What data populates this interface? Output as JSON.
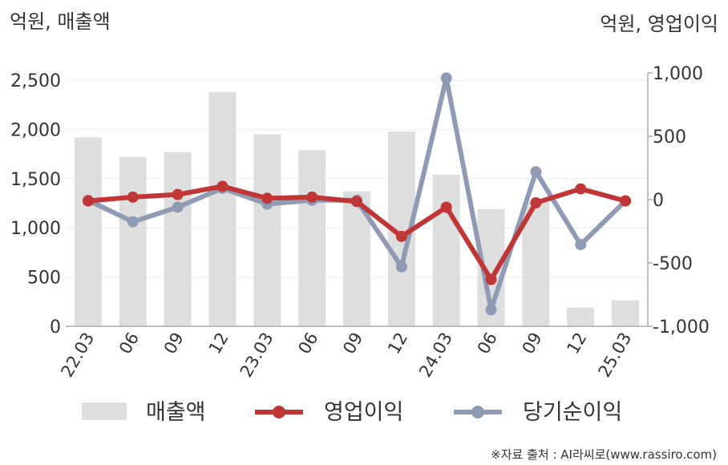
{
  "chart_data": {
    "type": "bar+line",
    "left_axis_title": "억원, 매출액",
    "right_axis_title": "억원, 영업이익",
    "categories": [
      "22.03",
      "06",
      "09",
      "12",
      "23.03",
      "06",
      "09",
      "12",
      "24.03",
      "06",
      "09",
      "12",
      "25.03"
    ],
    "left_ylim": [
      0,
      2500
    ],
    "left_yticks": [
      0,
      500,
      1000,
      1500,
      2000,
      2500
    ],
    "right_ylim": [
      -1000,
      1000
    ],
    "right_yticks": [
      -1000,
      -500,
      0,
      500,
      1000
    ],
    "right_ytick_labels": [
      "-1,000",
      "-500",
      "0",
      "500",
      "1,000"
    ],
    "left_ytick_labels": [
      "0",
      "500",
      "1,000",
      "1,500",
      "2,000",
      "2,500"
    ],
    "grid": true,
    "legend_position": "bottom",
    "series": [
      {
        "name": "매출액",
        "type": "bar",
        "axis": "left",
        "color": "#dedede",
        "values": [
          1920,
          1720,
          1770,
          2380,
          1950,
          1790,
          1370,
          1980,
          1540,
          1190,
          1260,
          190,
          265
        ]
      },
      {
        "name": "영업이익",
        "type": "line",
        "axis": "right",
        "color": "#c03535",
        "values": [
          -10,
          20,
          40,
          105,
          10,
          20,
          -15,
          -290,
          -60,
          -630,
          -25,
          85,
          -10
        ]
      },
      {
        "name": "당기순이익",
        "type": "line",
        "axis": "right",
        "color": "#8f9bb5",
        "values": [
          -5,
          -175,
          -60,
          90,
          -35,
          -5,
          -5,
          -530,
          960,
          -870,
          220,
          -355,
          -10
        ]
      }
    ]
  },
  "source_text": "※자료 출처 : AI라씨로(www.rassiro.com)"
}
